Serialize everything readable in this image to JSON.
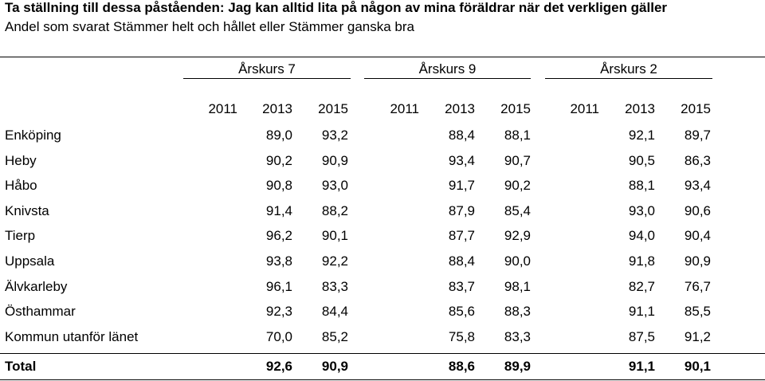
{
  "title": "Ta ställning till dessa påståenden: Jag kan alltid lita på någon av mina föräldrar när det verkligen gäller",
  "subtitle": "Andel som svarat Stämmer helt och hållet eller Stämmer ganska bra",
  "groups": [
    "Årskurs 7",
    "Årskurs 9",
    "Årskurs 2"
  ],
  "years": [
    "2011",
    "2013",
    "2015",
    "2011",
    "2013",
    "2015",
    "2011",
    "2013",
    "2015"
  ],
  "rows": [
    {
      "name": "Enköping",
      "values": [
        "",
        "89,0",
        "93,2",
        "",
        "88,4",
        "88,1",
        "",
        "92,1",
        "89,7"
      ]
    },
    {
      "name": "Heby",
      "values": [
        "",
        "90,2",
        "90,9",
        "",
        "93,4",
        "90,7",
        "",
        "90,5",
        "86,3"
      ]
    },
    {
      "name": "Håbo",
      "values": [
        "",
        "90,8",
        "93,0",
        "",
        "91,7",
        "90,2",
        "",
        "88,1",
        "93,4"
      ]
    },
    {
      "name": "Knivsta",
      "values": [
        "",
        "91,4",
        "88,2",
        "",
        "87,9",
        "85,4",
        "",
        "93,0",
        "90,6"
      ]
    },
    {
      "name": "Tierp",
      "values": [
        "",
        "96,2",
        "90,1",
        "",
        "87,7",
        "92,9",
        "",
        "94,0",
        "90,4"
      ]
    },
    {
      "name": "Uppsala",
      "values": [
        "",
        "93,8",
        "92,2",
        "",
        "88,4",
        "90,0",
        "",
        "91,8",
        "90,9"
      ]
    },
    {
      "name": "Älvkarleby",
      "values": [
        "",
        "96,1",
        "83,3",
        "",
        "83,7",
        "98,1",
        "",
        "82,7",
        "76,7"
      ]
    },
    {
      "name": "Östhammar",
      "values": [
        "",
        "92,3",
        "84,4",
        "",
        "85,6",
        "88,3",
        "",
        "91,1",
        "85,5"
      ]
    },
    {
      "name": "Kommun utanför länet",
      "values": [
        "",
        "70,0",
        "85,2",
        "",
        "75,8",
        "83,3",
        "",
        "87,5",
        "91,2"
      ]
    }
  ],
  "total": {
    "name": "Total",
    "values": [
      "",
      "92,6",
      "90,9",
      "",
      "88,6",
      "89,9",
      "",
      "91,1",
      "90,1"
    ]
  }
}
